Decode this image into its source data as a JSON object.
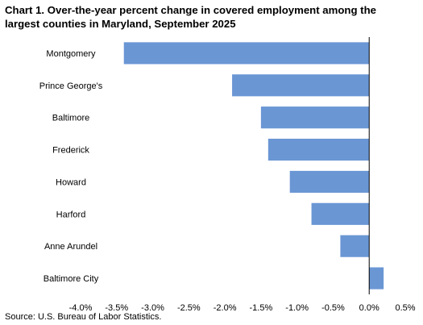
{
  "chart_data": {
    "type": "bar",
    "orientation": "horizontal",
    "title": "Chart 1. Over-the-year percent change in covered employment among the largest counties in Maryland, September 2025",
    "categories": [
      "Montgomery",
      "Prince George's",
      "Baltimore",
      "Frederick",
      "Howard",
      "Harford",
      "Anne Arundel",
      "Baltimore City"
    ],
    "values": [
      -3.4,
      -1.9,
      -1.5,
      -1.4,
      -1.1,
      -0.8,
      -0.4,
      0.2
    ],
    "xlim": [
      -4.0,
      0.5
    ],
    "x_ticks": [
      "-4.0%",
      "-3.5%",
      "-3.0%",
      "-2.5%",
      "-2.0%",
      "-1.5%",
      "-1.0%",
      "-0.5%",
      "0.0%",
      "0.5%"
    ],
    "xlabel": "",
    "ylabel": "",
    "grid": false,
    "legend": "none",
    "bar_color": "#6a96d4",
    "source": "Source: U.S. Bureau of Labor Statistics."
  }
}
